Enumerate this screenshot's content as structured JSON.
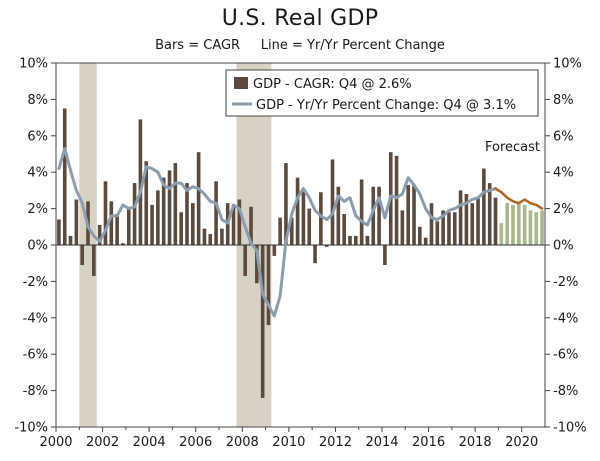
{
  "chart_data": {
    "type": "bar",
    "title": "U.S. Real GDP",
    "subtitle": "Bars = CAGR     Line = Yr/Yr Percent Change",
    "ylim": [
      -10,
      10
    ],
    "y_ticks": [
      -10,
      -8,
      -6,
      -4,
      -2,
      0,
      2,
      4,
      6,
      8,
      10
    ],
    "y_tick_labels": [
      "-10%",
      "-8%",
      "-6%",
      "-4%",
      "-2%",
      "0%",
      "2%",
      "4%",
      "6%",
      "8%",
      "10%"
    ],
    "xlim": [
      2000,
      2021
    ],
    "x_ticks": [
      2000,
      2002,
      2004,
      2006,
      2008,
      2010,
      2012,
      2014,
      2016,
      2018,
      2020
    ],
    "x_tick_labels": [
      "2000",
      "2002",
      "2004",
      "2006",
      "2008",
      "2010",
      "2012",
      "2014",
      "2016",
      "2018",
      "2020"
    ],
    "recessions": [
      [
        2001.0,
        2001.75
      ],
      [
        2007.75,
        2009.25
      ]
    ],
    "forecast_start": 2019.0,
    "annotations": [
      {
        "text": "Forecast"
      }
    ],
    "colors": {
      "bars": "#5b4a3d",
      "bars_forecast": "#a9b88a",
      "line": "#8c9daf",
      "line_forecast": "#b3651e",
      "recession": "#d8d2c4"
    },
    "legend": {
      "position": "top-center",
      "entries": [
        {
          "label": "GDP - CAGR: Q4 @ 2.6%",
          "marker": "bar"
        },
        {
          "label": "GDP - Yr/Yr Percent Change: Q4 @ 3.1%",
          "marker": "line"
        }
      ]
    },
    "series": [
      {
        "name": "GDP - CAGR: Q4 @ 2.6%",
        "type": "bar",
        "x_start": 2000.0,
        "step": 0.25,
        "values": [
          1.4,
          7.5,
          0.5,
          2.5,
          -1.1,
          2.4,
          -1.7,
          1.1,
          3.5,
          2.4,
          1.7,
          0.1,
          2.1,
          3.4,
          6.9,
          4.6,
          2.2,
          3.0,
          3.7,
          4.1,
          4.5,
          1.8,
          3.4,
          2.3,
          5.1,
          0.9,
          0.6,
          3.5,
          0.9,
          2.3,
          2.2,
          2.5,
          -1.7,
          2.1,
          -2.1,
          -8.4,
          -4.4,
          -0.6,
          1.5,
          4.5,
          1.5,
          3.7,
          3.0,
          2.0,
          -1.0,
          2.9,
          -0.1,
          4.7,
          3.2,
          1.7,
          0.5,
          0.5,
          3.6,
          0.5,
          3.2,
          3.2,
          -1.1,
          5.1,
          4.9,
          1.9,
          3.3,
          3.3,
          1.0,
          0.4,
          2.3,
          1.3,
          1.9,
          1.8,
          1.8,
          3.0,
          2.8,
          2.3,
          2.6,
          4.2,
          3.4,
          2.6,
          1.2,
          2.3,
          2.2,
          2.4,
          2.2,
          1.9,
          1.8,
          1.9
        ]
      },
      {
        "name": "GDP - Yr/Yr Percent Change: Q4 @ 3.1%",
        "type": "line",
        "x_start": 2000.0,
        "step": 0.25,
        "values": [
          4.2,
          5.3,
          4.1,
          3.0,
          2.3,
          1.0,
          0.5,
          0.2,
          0.8,
          1.6,
          1.6,
          2.2,
          2.0,
          2.1,
          2.9,
          4.3,
          4.2,
          4.0,
          3.3,
          3.1,
          3.4,
          3.4,
          3.0,
          3.2,
          3.1,
          2.8,
          2.4,
          2.3,
          1.4,
          1.2,
          2.2,
          2.0,
          1.0,
          0.1,
          -0.3,
          -2.7,
          -3.3,
          -3.9,
          -2.8,
          0.2,
          1.7,
          2.6,
          3.1,
          2.6,
          1.9,
          1.6,
          1.4,
          1.7,
          2.7,
          2.4,
          2.6,
          1.6,
          1.3,
          1.1,
          1.9,
          2.6,
          1.5,
          2.7,
          2.6,
          2.8,
          3.7,
          3.3,
          2.8,
          2.0,
          1.5,
          1.4,
          1.6,
          1.9,
          2.0,
          2.2,
          2.3,
          2.5,
          2.6,
          2.9,
          3.0,
          3.1
        ]
      },
      {
        "name": "Forecast",
        "type": "line",
        "x_start": 2018.75,
        "step": 0.25,
        "values": [
          3.1,
          2.9,
          2.6,
          2.4,
          2.3,
          2.5,
          2.3,
          2.2,
          2.0
        ]
      }
    ]
  }
}
